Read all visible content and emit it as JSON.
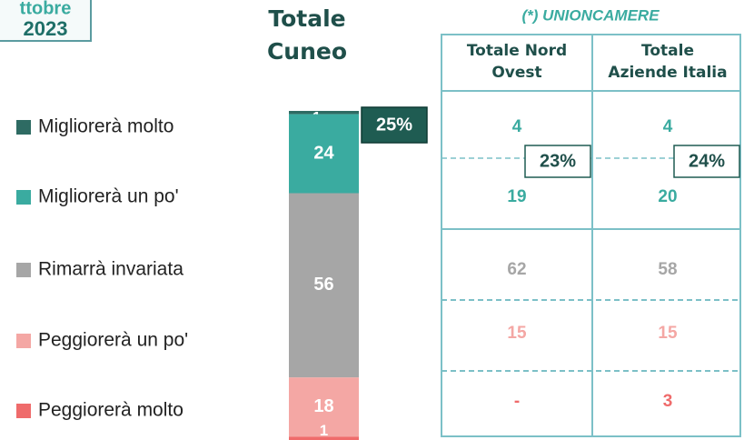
{
  "badge": {
    "line1": "ttobre",
    "line2": "2023"
  },
  "chart_data": {
    "type": "bar",
    "title": [
      "Totale",
      "Cuneo"
    ],
    "categories": [
      "Migliorerà molto",
      "Migliorerà un po'",
      "Rimarrà invariata",
      "Peggiorerà un po'",
      "Peggiorerà molto"
    ],
    "values": [
      1,
      24,
      56,
      18,
      1
    ],
    "colors": [
      "#2e6b63",
      "#3aaba0",
      "#a6a6a6",
      "#f4a7a4",
      "#ef6b6b"
    ],
    "ylim": [
      0,
      100
    ],
    "stacked": true,
    "annotation": "25%"
  },
  "table": {
    "source": "(*) UNIONCAMERE",
    "columns": [
      [
        "Totale Nord",
        "Ovest"
      ],
      [
        "Totale",
        "Aziende Italia"
      ]
    ],
    "rows": [
      [
        "4",
        "4"
      ],
      [
        "19",
        "20"
      ],
      [
        "62",
        "58"
      ],
      [
        "15",
        "15"
      ],
      [
        "-",
        "3"
      ]
    ],
    "summaries": [
      "23%",
      "24%"
    ]
  }
}
